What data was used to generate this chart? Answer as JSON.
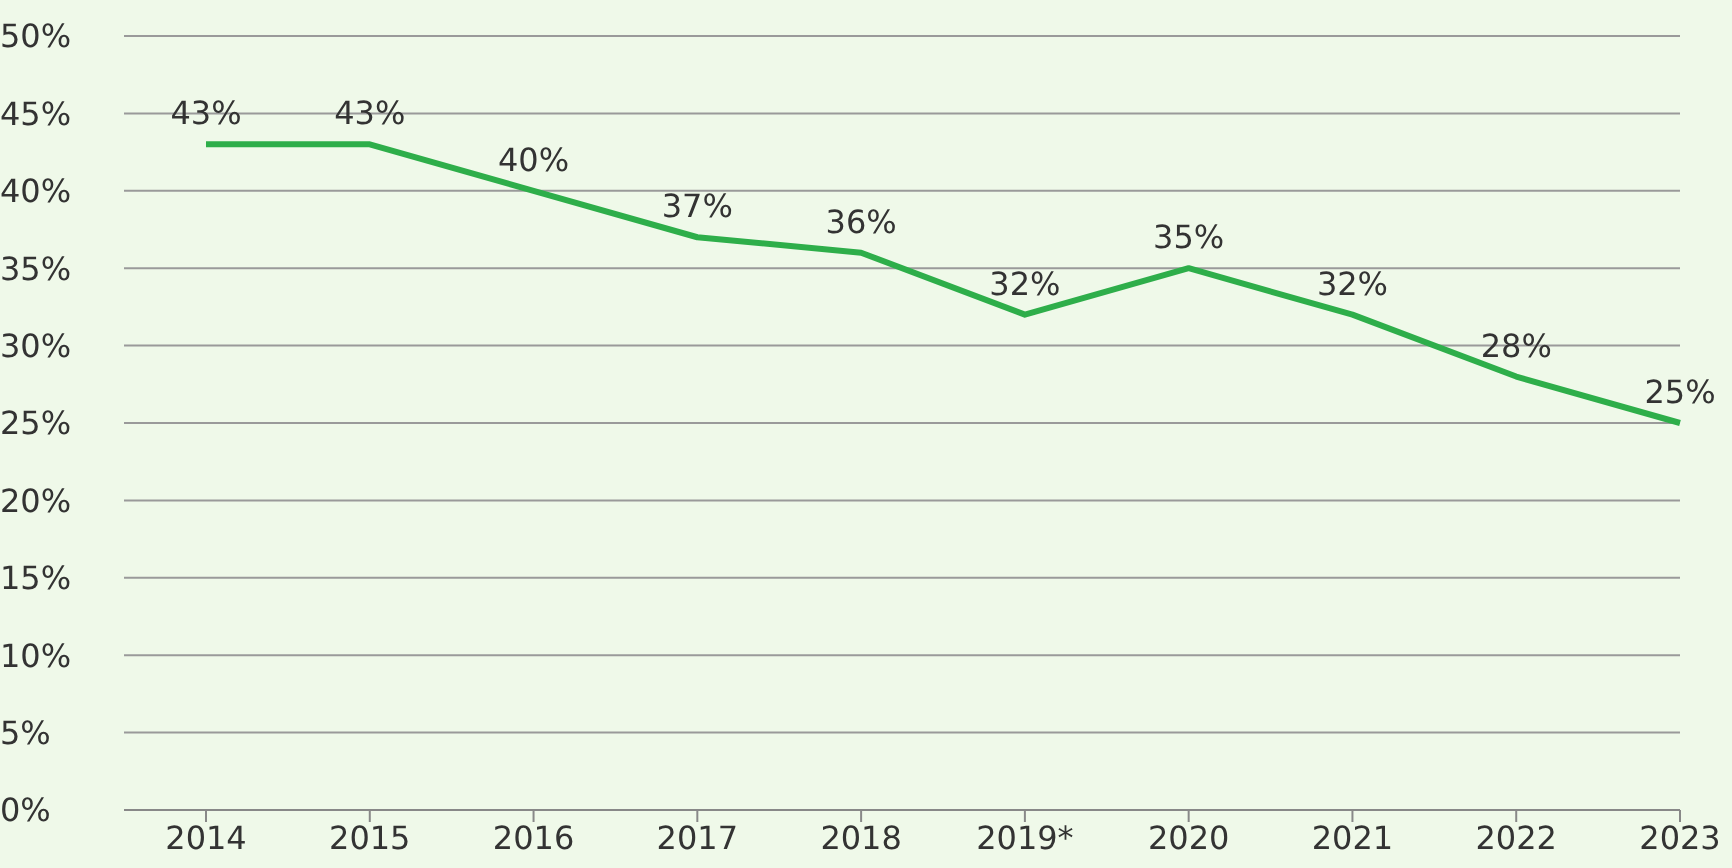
{
  "chart_data": {
    "type": "line",
    "categories": [
      "2014",
      "2015",
      "2016",
      "2017",
      "2018",
      "2019*",
      "2020",
      "2021",
      "2022",
      "2023"
    ],
    "series": [
      {
        "color": "#2eae4a",
        "values": [
          43,
          43,
          40,
          37,
          36,
          32,
          35,
          32,
          28,
          25
        ],
        "value_labels": [
          "43%",
          "43%",
          "40%",
          "37%",
          "36%",
          "32%",
          "35%",
          "32%",
          "28%",
          "25%"
        ]
      }
    ],
    "ylim": [
      0,
      50
    ],
    "yticks": [
      {
        "value": 0,
        "label": "0%"
      },
      {
        "value": 5,
        "label": "5%"
      },
      {
        "value": 10,
        "label": "10%"
      },
      {
        "value": 15,
        "label": "15%"
      },
      {
        "value": 20,
        "label": "20%"
      },
      {
        "value": 25,
        "label": "25%"
      },
      {
        "value": 30,
        "label": "30%"
      },
      {
        "value": 35,
        "label": "35%"
      },
      {
        "value": 40,
        "label": "40%"
      },
      {
        "value": 45,
        "label": "45%"
      },
      {
        "value": 50,
        "label": "50%"
      }
    ],
    "grid": "y",
    "marker": "none",
    "line_style": "solid",
    "legend": false
  }
}
